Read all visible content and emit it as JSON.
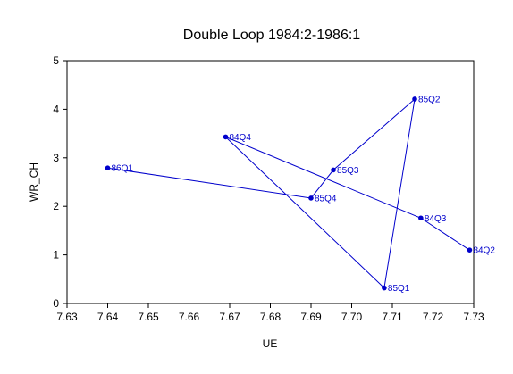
{
  "chart_data": {
    "type": "line",
    "title": "Double Loop 1984:2-1986:1",
    "xlabel": "UE",
    "ylabel": "WR_CH",
    "xlim": [
      7.63,
      7.73
    ],
    "ylim": [
      0,
      5
    ],
    "x_ticks": [
      "7.63",
      "7.64",
      "7.65",
      "7.66",
      "7.67",
      "7.68",
      "7.69",
      "7.70",
      "7.71",
      "7.72",
      "7.73"
    ],
    "y_ticks": [
      "0",
      "1",
      "2",
      "3",
      "4",
      "5"
    ],
    "grid": false,
    "legend": "none",
    "series_color": "#0000cc",
    "points": [
      {
        "label": "84Q2",
        "x": 7.729,
        "y": 1.1
      },
      {
        "label": "84Q3",
        "x": 7.717,
        "y": 1.76
      },
      {
        "label": "84Q4",
        "x": 7.669,
        "y": 3.43
      },
      {
        "label": "85Q1",
        "x": 7.708,
        "y": 0.32
      },
      {
        "label": "85Q2",
        "x": 7.7155,
        "y": 4.21
      },
      {
        "label": "85Q3",
        "x": 7.6955,
        "y": 2.75
      },
      {
        "label": "85Q4",
        "x": 7.69,
        "y": 2.17
      },
      {
        "label": "86Q1",
        "x": 7.64,
        "y": 2.79
      }
    ]
  }
}
